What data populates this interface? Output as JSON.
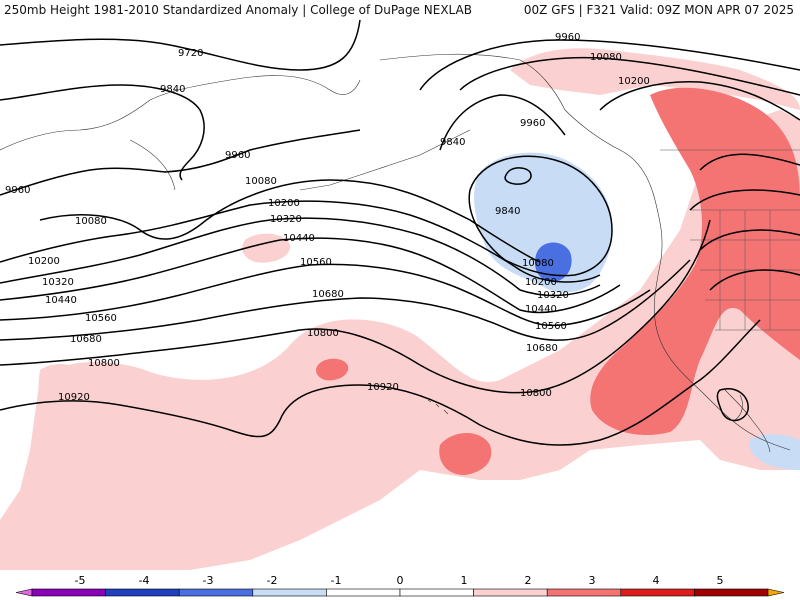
{
  "header": {
    "title_left": "250mb Height 1981-2010 Standardized Anomaly | College of DuPage NEXLAB",
    "title_right": "00Z GFS | F321 Valid: 09Z MON APR 07 2025"
  },
  "map": {
    "contour_labels": [
      "9720",
      "9840",
      "9960",
      "10080",
      "10200",
      "10320",
      "10440",
      "10560",
      "10680",
      "10800",
      "10920"
    ],
    "anomaly_colors": {
      "neg5": "#e066e0",
      "neg4": "#8a00b8",
      "neg3": "#1f3fbf",
      "neg2": "#4a6fe0",
      "neg1": "#c8dcf6",
      "zero": "#ffffff",
      "pos1": "#fbd0d0",
      "pos2": "#f47474",
      "pos3": "#dd1c1c",
      "pos4": "#a00000",
      "pos5": "#f5a500"
    }
  },
  "colorbar": {
    "tick_labels": [
      "-5",
      "-4",
      "-3",
      "-2",
      "-1",
      "0",
      "1",
      "2",
      "3",
      "4",
      "5"
    ],
    "segment_colors": [
      "#e066e0",
      "#8a00b8",
      "#1f3fbf",
      "#4a6fe0",
      "#c8dcf6",
      "#ffffff",
      "#ffffff",
      "#fbd0d0",
      "#f47474",
      "#dd1c1c",
      "#a00000",
      "#f5a500"
    ]
  }
}
